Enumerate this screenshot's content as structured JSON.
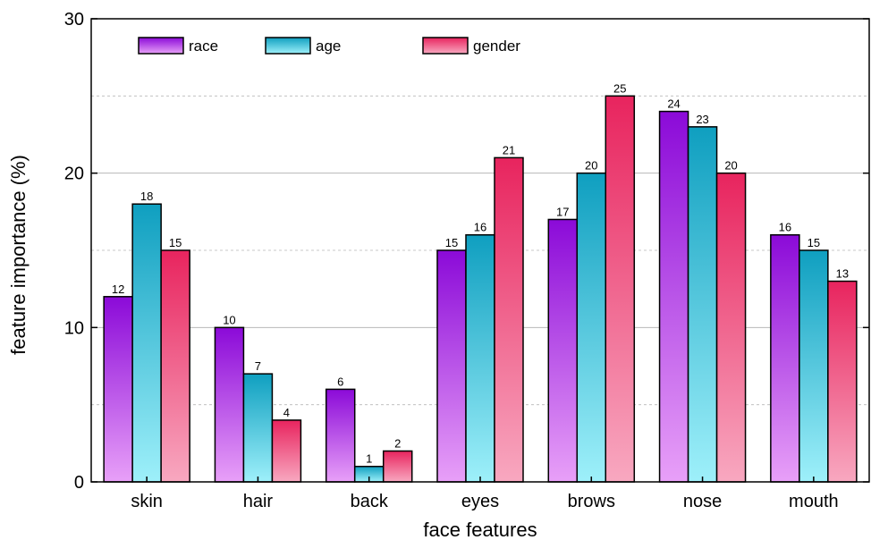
{
  "chart_data": {
    "type": "bar",
    "title": "",
    "xlabel": "face features",
    "ylabel": "feature importance (%)",
    "ylim": [
      0,
      30
    ],
    "yticks": [
      0,
      10,
      20,
      30
    ],
    "grid": "horizontal dashed minor, solid major",
    "legend_position": "top-left",
    "categories": [
      "skin",
      "hair",
      "back",
      "eyes",
      "brows",
      "nose",
      "mouth"
    ],
    "series": [
      {
        "name": "race",
        "values": [
          12,
          10,
          6,
          15,
          17,
          24,
          16
        ],
        "color_top": "#8b0ad8",
        "color_bottom": "#e8a0f8"
      },
      {
        "name": "age",
        "values": [
          18,
          7,
          1,
          16,
          20,
          23,
          15
        ],
        "color_top": "#0f9fc0",
        "color_bottom": "#9ef0fa"
      },
      {
        "name": "gender",
        "values": [
          15,
          4,
          2,
          21,
          25,
          20,
          13
        ],
        "color_top": "#e8245e",
        "color_bottom": "#f8a8c0"
      }
    ]
  }
}
